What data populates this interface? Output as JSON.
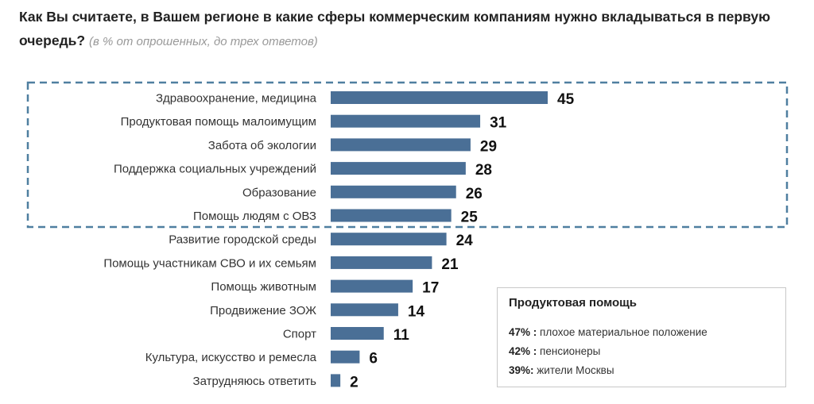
{
  "chart_data": {
    "type": "bar",
    "orientation": "horizontal",
    "title": "Как Вы считаете, в Вашем регионе в какие сферы коммерческим компаниям нужно вкладываться в первую очередь?",
    "subtitle": "(в % от опрошенных, до трех ответов)",
    "categories": [
      "Здравоохранение, медицина",
      "Продуктовая помощь малоимущим",
      "Забота об экологии",
      "Поддержка социальных учреждений",
      "Образование",
      "Помощь людям с ОВЗ",
      "Развитие городской среды",
      "Помощь участникам СВО и их семьям",
      "Помощь животным",
      "Продвижение ЗОЖ",
      "Спорт",
      "Культура, искусство и ремесла",
      "Затрудняюсь ответить"
    ],
    "values": [
      45,
      31,
      29,
      28,
      26,
      25,
      24,
      21,
      17,
      14,
      11,
      6,
      2
    ],
    "highlighted_top": 6,
    "bar_color": "#4a6f96",
    "highlight_border_color": "#4f7fa0",
    "xlim": [
      0,
      45
    ]
  },
  "note": {
    "title": "Продуктовая помощь",
    "rows": [
      {
        "value": "47% :",
        "label": "плохое материальное положение"
      },
      {
        "value": "42% :",
        "label": "пенсионеры"
      },
      {
        "value": "39%:",
        "label": "жители Москвы"
      }
    ]
  }
}
